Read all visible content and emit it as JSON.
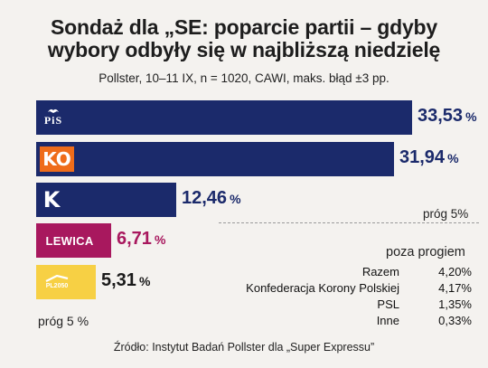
{
  "title_line1": "Sondaż dla „SE: poparcie partii – gdyby",
  "title_line2": "wybory odbyły się w najbliższą niedzielę",
  "subtitle": "Pollster, 10–11 IX, n = 1020, CAWI, maks. błąd ±3 pp.",
  "chart_data": {
    "type": "bar",
    "orientation": "horizontal",
    "categories": [
      "PiS",
      "KO",
      "Konfederacja",
      "Lewica",
      "PSL-Polska 2050"
    ],
    "values": [
      33.53,
      31.94,
      12.46,
      6.71,
      5.31
    ],
    "labels": [
      "33,53",
      "31,94",
      "12,46",
      "6,71",
      "5,31"
    ],
    "unit": "%",
    "colors": [
      "#1b2a6b",
      "#1b2a6b",
      "#1b2a6b",
      "#a8185e",
      "#f7d044"
    ],
    "value_colors": [
      "#1b2a6b",
      "#1b2a6b",
      "#1b2a6b",
      "#a8185e",
      "#1a1a1a"
    ],
    "logo_texts": [
      "PiS",
      "KO",
      "K",
      "LEWICA",
      "PL2050"
    ],
    "threshold": 5,
    "threshold_label_right": "próg 5%",
    "threshold_label_left": "próg  5 %"
  },
  "below_threshold": {
    "title": "poza progiem",
    "rows": [
      {
        "name": "Razem",
        "value": "4,20%"
      },
      {
        "name": "Konfederacja Korony Polskiej",
        "value": "4,17%"
      },
      {
        "name": "PSL",
        "value": "1,35%"
      },
      {
        "name": "Inne",
        "value": "0,33%"
      }
    ]
  },
  "source": "Źródło: Instytut Badań Pollster dla „Super Expressu”"
}
